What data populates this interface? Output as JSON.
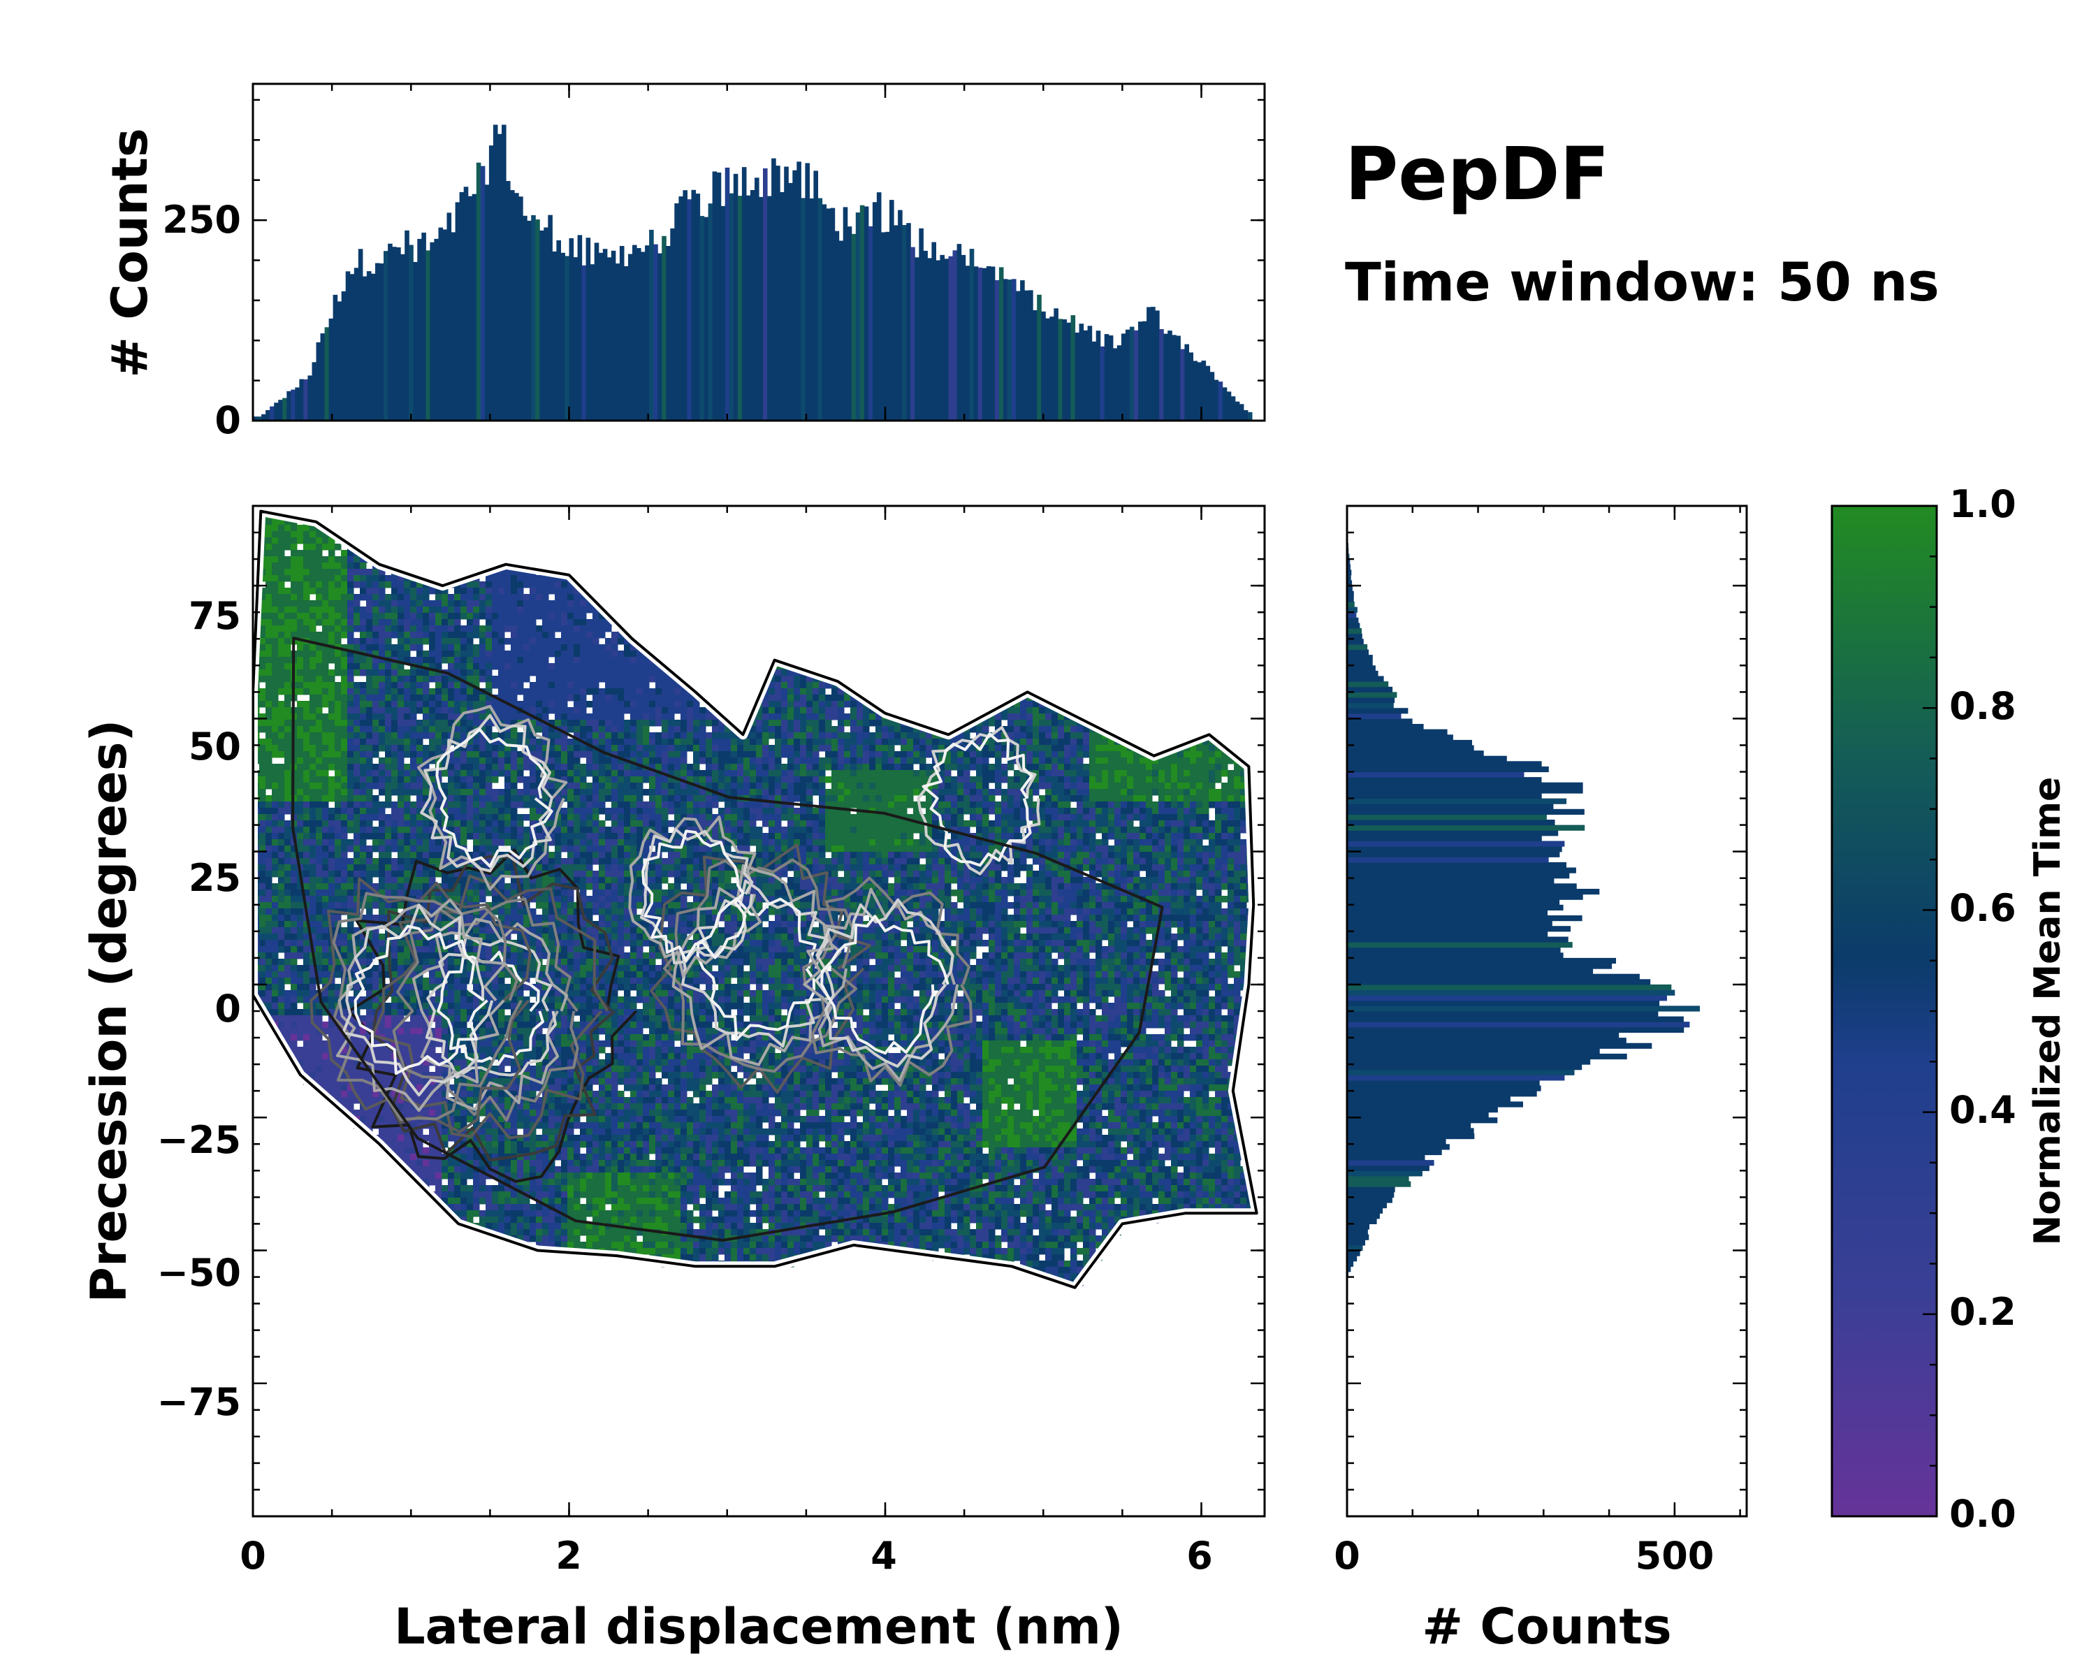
{
  "annotation": {
    "title": "PepDF",
    "subtitle": "Time window: 50 ns"
  },
  "colors": {
    "low": "#663399",
    "mid1": "#2e3f8f",
    "mid2": "#0b3b6b",
    "mid3": "#145c57",
    "high": "#228b22"
  },
  "chart_data": [
    {
      "id": "joint",
      "type": "heatmap",
      "xlabel": "Lateral displacement (nm)",
      "ylabel": "Precession (degrees)",
      "xlim": [
        0,
        6.4
      ],
      "ylim": [
        -95,
        95
      ],
      "xticks": [
        "0",
        "2",
        "4",
        "6"
      ],
      "yticks": [
        "−75",
        "−50",
        "−25",
        "0",
        "25",
        "50",
        "75"
      ],
      "colorbar": {
        "label": "Normalized Mean Time",
        "range": [
          0,
          1
        ],
        "ticks": [
          "0.0",
          "0.2",
          "0.4",
          "0.6",
          "0.8",
          "1.0"
        ]
      },
      "density_peaks": [
        {
          "x": 1.5,
          "y": 0,
          "weight": 1.0
        },
        {
          "x": 1.05,
          "y": 2,
          "weight": 0.75
        },
        {
          "x": 3.2,
          "y": 8,
          "weight": 0.7
        },
        {
          "x": 4.0,
          "y": 5,
          "weight": 0.55
        },
        {
          "x": 1.5,
          "y": 40,
          "weight": 0.45
        },
        {
          "x": 2.8,
          "y": 22,
          "weight": 0.4
        },
        {
          "x": 4.6,
          "y": 40,
          "weight": 0.35
        }
      ],
      "occupied_range": {
        "x": [
          0,
          6.35
        ],
        "y": [
          -52,
          94
        ]
      }
    },
    {
      "id": "marginal-x",
      "type": "bar",
      "ylabel": "# Counts",
      "xlim": [
        0,
        6.4
      ],
      "ylim": [
        0,
        420
      ],
      "yticks": [
        "0",
        "250"
      ],
      "x_centers_nm": [
        0.05,
        0.35,
        0.6,
        0.9,
        1.2,
        1.45,
        1.55,
        1.7,
        2.0,
        2.2,
        2.5,
        2.8,
        3.1,
        3.3,
        3.5,
        3.7,
        3.95,
        4.2,
        4.5,
        4.8,
        5.0,
        5.2,
        5.45,
        5.7,
        5.9,
        6.1,
        6.3
      ],
      "counts": [
        5,
        55,
        190,
        215,
        225,
        310,
        365,
        265,
        220,
        200,
        215,
        275,
        300,
        310,
        305,
        245,
        265,
        225,
        210,
        185,
        140,
        120,
        95,
        135,
        95,
        50,
        10
      ]
    },
    {
      "id": "marginal-y",
      "type": "bar",
      "orientation": "horizontal",
      "xlabel": "# Counts",
      "xlim": [
        0,
        610
      ],
      "xticks": [
        "0",
        "500"
      ],
      "ylim": [
        -95,
        95
      ],
      "y_centers_deg": [
        -50,
        -45,
        -40,
        -35,
        -30,
        -25,
        -20,
        -15,
        -10,
        -5,
        0,
        5,
        10,
        15,
        20,
        25,
        30,
        35,
        40,
        45,
        50,
        55,
        60,
        65,
        70,
        75,
        80,
        85,
        90
      ],
      "counts": [
        0,
        20,
        40,
        65,
        110,
        160,
        225,
        290,
        360,
        455,
        545,
        470,
        380,
        320,
        350,
        345,
        315,
        330,
        340,
        300,
        200,
        95,
        65,
        40,
        25,
        15,
        8,
        4,
        0
      ]
    }
  ]
}
